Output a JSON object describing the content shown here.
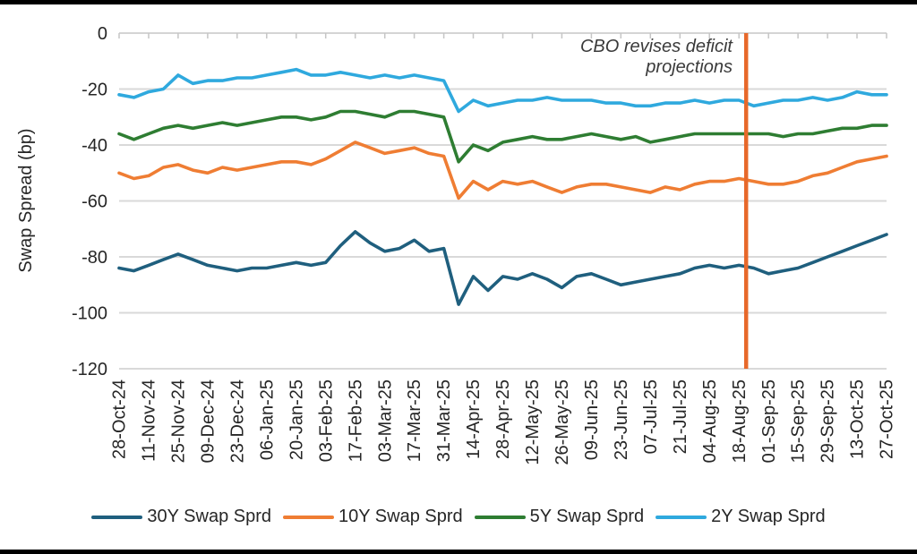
{
  "page": {
    "background": "#ffffff",
    "border_bar_color": "#000000"
  },
  "chart_data": {
    "type": "line",
    "title": "",
    "xlabel": "",
    "ylabel": "Swap Spread (bp)",
    "ylim": [
      -120,
      0
    ],
    "yticks": [
      0,
      -20,
      -40,
      -60,
      -80,
      -100,
      -120
    ],
    "grid": true,
    "legend_position": "bottom",
    "axis_color": "#c6c6c6",
    "grid_color": "#d9d9d9",
    "text_color": "#262626",
    "x_tick_labels": [
      "28-Oct-24",
      "11-Nov-24",
      "25-Nov-24",
      "09-Dec-24",
      "23-Dec-24",
      "06-Jan-25",
      "20-Jan-25",
      "03-Feb-25",
      "17-Feb-25",
      "03-Mar-25",
      "17-Mar-25",
      "31-Mar-25",
      "14-Apr-25",
      "28-Apr-25",
      "12-May-25",
      "26-May-25",
      "09-Jun-25",
      "23-Jun-25",
      "07-Jul-25",
      "21-Jul-25",
      "04-Aug-25",
      "18-Aug-25",
      "01-Sep-25",
      "15-Sep-25",
      "29-Sep-25",
      "13-Oct-25",
      "27-Oct-25"
    ],
    "x_dates": [
      "28-Oct-24",
      "04-Nov-24",
      "11-Nov-24",
      "18-Nov-24",
      "25-Nov-24",
      "02-Dec-24",
      "09-Dec-24",
      "16-Dec-24",
      "23-Dec-24",
      "30-Dec-24",
      "06-Jan-25",
      "13-Jan-25",
      "20-Jan-25",
      "27-Jan-25",
      "03-Feb-25",
      "10-Feb-25",
      "17-Feb-25",
      "24-Feb-25",
      "03-Mar-25",
      "10-Mar-25",
      "17-Mar-25",
      "24-Mar-25",
      "31-Mar-25",
      "07-Apr-25",
      "14-Apr-25",
      "21-Apr-25",
      "28-Apr-25",
      "05-May-25",
      "12-May-25",
      "19-May-25",
      "26-May-25",
      "02-Jun-25",
      "09-Jun-25",
      "16-Jun-25",
      "23-Jun-25",
      "30-Jun-25",
      "07-Jul-25",
      "14-Jul-25",
      "21-Jul-25",
      "28-Jul-25",
      "04-Aug-25",
      "11-Aug-25",
      "18-Aug-25",
      "25-Aug-25",
      "01-Sep-25",
      "08-Sep-25",
      "15-Sep-25",
      "22-Sep-25",
      "29-Sep-25",
      "06-Oct-25",
      "13-Oct-25",
      "20-Oct-25",
      "27-Oct-25"
    ],
    "series": [
      {
        "name": "30Y Swap Sprd",
        "color": "#1f5f7e",
        "values": [
          -84,
          -85,
          -83,
          -81,
          -79,
          -81,
          -83,
          -84,
          -85,
          -84,
          -84,
          -83,
          -82,
          -83,
          -82,
          -76,
          -71,
          -75,
          -78,
          -77,
          -74,
          -78,
          -77,
          -97,
          -87,
          -92,
          -87,
          -88,
          -86,
          -88,
          -91,
          -87,
          -86,
          -88,
          -90,
          -89,
          -88,
          -87,
          -86,
          -84,
          -83,
          -84,
          -83,
          -84,
          -86,
          -85,
          -84,
          -82,
          -80,
          -78,
          -76,
          -74,
          -72
        ]
      },
      {
        "name": "10Y Swap Sprd",
        "color": "#ef7d33",
        "values": [
          -50,
          -52,
          -51,
          -48,
          -47,
          -49,
          -50,
          -48,
          -49,
          -48,
          -47,
          -46,
          -46,
          -47,
          -45,
          -42,
          -39,
          -41,
          -43,
          -42,
          -41,
          -43,
          -44,
          -59,
          -53,
          -56,
          -53,
          -54,
          -53,
          -55,
          -57,
          -55,
          -54,
          -54,
          -55,
          -56,
          -57,
          -55,
          -56,
          -54,
          -53,
          -53,
          -52,
          -53,
          -54,
          -54,
          -53,
          -51,
          -50,
          -48,
          -46,
          -45,
          -44
        ]
      },
      {
        "name": "5Y Swap Sprd",
        "color": "#2e7d32",
        "values": [
          -36,
          -38,
          -36,
          -34,
          -33,
          -34,
          -33,
          -32,
          -33,
          -32,
          -31,
          -30,
          -30,
          -31,
          -30,
          -28,
          -28,
          -29,
          -30,
          -28,
          -28,
          -29,
          -30,
          -46,
          -40,
          -42,
          -39,
          -38,
          -37,
          -38,
          -38,
          -37,
          -36,
          -37,
          -38,
          -37,
          -39,
          -38,
          -37,
          -36,
          -36,
          -36,
          -36,
          -36,
          -36,
          -37,
          -36,
          -36,
          -35,
          -34,
          -34,
          -33,
          -33
        ]
      },
      {
        "name": "2Y Swap Sprd",
        "color": "#2fa9de",
        "values": [
          -22,
          -23,
          -21,
          -20,
          -15,
          -18,
          -17,
          -17,
          -16,
          -16,
          -15,
          -14,
          -13,
          -15,
          -15,
          -14,
          -15,
          -16,
          -15,
          -16,
          -15,
          -16,
          -17,
          -28,
          -24,
          -26,
          -25,
          -24,
          -24,
          -23,
          -24,
          -24,
          -24,
          -25,
          -25,
          -26,
          -26,
          -25,
          -25,
          -24,
          -25,
          -24,
          -24,
          -26,
          -25,
          -24,
          -24,
          -23,
          -24,
          -23,
          -21,
          -22,
          -22
        ]
      }
    ],
    "annotation": {
      "text_lines": [
        "CBO revises deficit",
        "projections"
      ],
      "x_fraction": 0.817,
      "line_color": "#e7682a",
      "text_color": "#3a3a3a"
    }
  }
}
